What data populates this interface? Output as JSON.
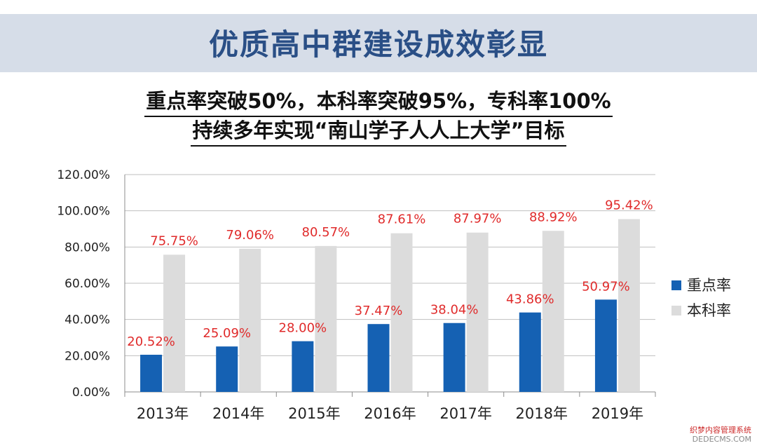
{
  "banner": {
    "title": "优质高中群建设成效彰显"
  },
  "subtitle": {
    "line1": "重点率突破50%，本科率突破95%，专科率100%",
    "line2": "持续多年实现“南山学子人人上大学”目标"
  },
  "chart_data": {
    "type": "bar",
    "categories": [
      "2013年",
      "2014年",
      "2015年",
      "2016年",
      "2017年",
      "2018年",
      "2019年"
    ],
    "series": [
      {
        "name": "重点率",
        "values": [
          20.52,
          25.09,
          28.0,
          37.47,
          38.04,
          43.86,
          50.97
        ],
        "color": "#1561b3",
        "labels": [
          "20.52%",
          "25.09%",
          "28.00%",
          "37.47%",
          "38.04%",
          "43.86%",
          "50.97%"
        ]
      },
      {
        "name": "本科率",
        "values": [
          75.75,
          79.06,
          80.57,
          87.61,
          87.97,
          88.92,
          95.42
        ],
        "color": "#dcdcdc",
        "labels": [
          "75.75%",
          "79.06%",
          "80.57%",
          "87.61%",
          "87.97%",
          "88.92%",
          "95.42%"
        ]
      }
    ],
    "yticks": [
      "0.00%",
      "20.00%",
      "40.00%",
      "60.00%",
      "80.00%",
      "100.00%",
      "120.00%"
    ],
    "ylim": [
      0,
      120
    ],
    "grid": true,
    "legend": "right",
    "label_color": "#e02b2b"
  },
  "watermark": {
    "line1": "织梦内容管理系统",
    "line2": "DEDECMS.COM"
  }
}
